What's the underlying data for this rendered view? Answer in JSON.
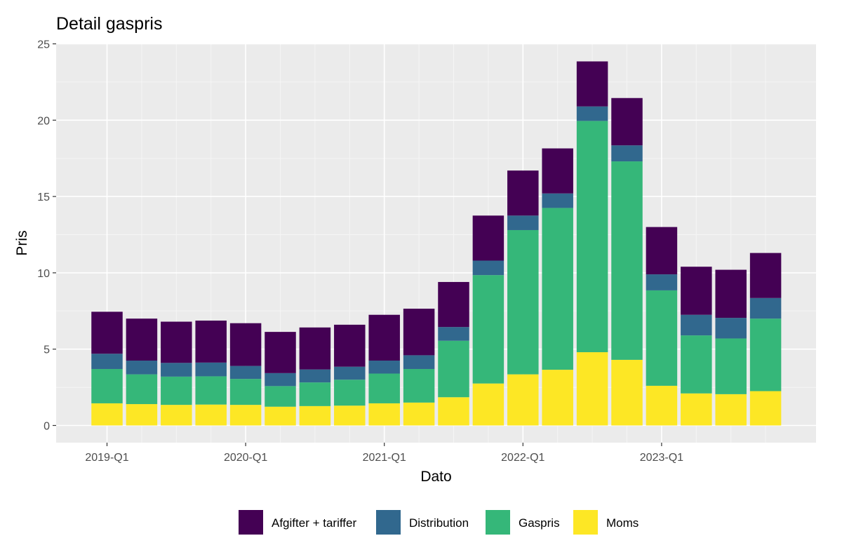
{
  "chart_data": {
    "type": "bar",
    "stacked": true,
    "title": "Detail gaspris",
    "xlabel": "Dato",
    "ylabel": "Pris",
    "ylim": [
      0,
      25
    ],
    "y_ticks": [
      0,
      5,
      10,
      15,
      20,
      25
    ],
    "x_tick_labels": [
      "2019-Q1",
      "2020-Q1",
      "2021-Q1",
      "2022-Q1",
      "2023-Q1"
    ],
    "grid": true,
    "legend_position": "bottom",
    "categories": [
      "2019-Q1",
      "2019-Q2",
      "2019-Q3",
      "2019-Q4",
      "2020-Q1",
      "2020-Q2",
      "2020-Q3",
      "2020-Q4",
      "2021-Q1",
      "2021-Q2",
      "2021-Q3",
      "2021-Q4",
      "2022-Q1",
      "2022-Q2",
      "2022-Q3",
      "2022-Q4",
      "2023-Q1",
      "2023-Q2",
      "2023-Q3",
      "2023-Q4"
    ],
    "series": [
      {
        "name": "Moms",
        "color": "#fde725",
        "values": [
          1.45,
          1.4,
          1.35,
          1.37,
          1.35,
          1.23,
          1.27,
          1.3,
          1.45,
          1.5,
          1.85,
          2.75,
          3.35,
          3.65,
          4.8,
          4.3,
          2.6,
          2.1,
          2.05,
          2.25
        ]
      },
      {
        "name": "Gaspris",
        "color": "#35b779",
        "values": [
          2.25,
          1.95,
          1.85,
          1.85,
          1.7,
          1.35,
          1.55,
          1.7,
          1.95,
          2.2,
          3.7,
          7.1,
          9.45,
          10.6,
          15.15,
          13.0,
          6.25,
          3.8,
          3.65,
          4.75
        ]
      },
      {
        "name": "Distribution",
        "color": "#31688e",
        "values": [
          1.0,
          0.9,
          0.9,
          0.9,
          0.85,
          0.85,
          0.85,
          0.85,
          0.85,
          0.9,
          0.9,
          0.95,
          0.95,
          0.95,
          0.95,
          1.05,
          1.05,
          1.35,
          1.35,
          1.35
        ]
      },
      {
        "name": "Afgifter + tariffer",
        "color": "#440154",
        "values": [
          2.75,
          2.75,
          2.7,
          2.75,
          2.8,
          2.7,
          2.75,
          2.75,
          3.0,
          3.05,
          2.95,
          2.95,
          2.95,
          2.95,
          2.95,
          3.1,
          3.1,
          3.15,
          3.15,
          2.95
        ]
      }
    ],
    "legend": [
      "Afgifter + tariffer",
      "Distribution",
      "Gaspris",
      "Moms"
    ]
  },
  "colors": {
    "panel_background": "#ebebeb",
    "grid_major": "#ffffff",
    "grid_minor": "#f5f5f5"
  }
}
